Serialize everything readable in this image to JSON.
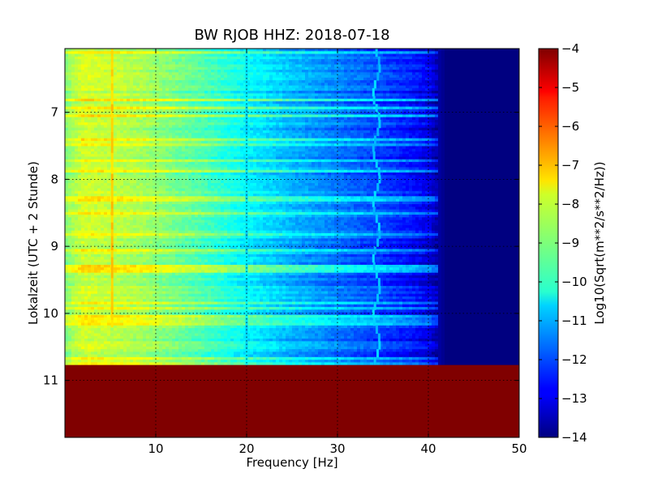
{
  "chart_data": {
    "type": "heatmap",
    "title": "BW RJOB HHZ: 2018-07-18",
    "xlabel": "Frequency [Hz]",
    "ylabel": "Lokalzeit (UTC + 2 Stunde)",
    "colorbar_label": "Log10(Sqrt(m**2/s**2/Hz))",
    "xlim": [
      0,
      50
    ],
    "ylim": [
      11.85,
      6.05
    ],
    "y_inverted": true,
    "x_ticks": [
      10,
      20,
      30,
      40,
      50
    ],
    "y_ticks": [
      7,
      8,
      9,
      10,
      11
    ],
    "colorbar_range": [
      -14,
      -4
    ],
    "colorbar_ticks": [
      -4,
      -5,
      -6,
      -7,
      -8,
      -9,
      -10,
      -11,
      -12,
      -13,
      -14
    ],
    "colormap": "jet",
    "grid": true,
    "data_end_time": 10.77,
    "fill_value_after_data_end": -4,
    "spectrum_profile": [
      {
        "freq": 0,
        "value": -9.0
      },
      {
        "freq": 2,
        "value": -8.2
      },
      {
        "freq": 8,
        "value": -8.6
      },
      {
        "freq": 15,
        "value": -9.5
      },
      {
        "freq": 20,
        "value": -10.3
      },
      {
        "freq": 25,
        "value": -11.0
      },
      {
        "freq": 30,
        "value": -11.6
      },
      {
        "freq": 35,
        "value": -12.2
      },
      {
        "freq": 38,
        "value": -12.6
      },
      {
        "freq": 40,
        "value": -13.0
      },
      {
        "freq": 41,
        "value": -13.6
      },
      {
        "freq": 42,
        "value": -14.0
      },
      {
        "freq": 50,
        "value": -14.0
      }
    ],
    "features": [
      {
        "name": "narrowband line",
        "freq": 5.2,
        "time_start": 6.05,
        "time_end": 10.2,
        "value": -7.3
      },
      {
        "name": "narrowband line",
        "freq": 20.0,
        "time_start": 6.05,
        "time_end": 10.77,
        "value": -10.5
      },
      {
        "name": "drifting line",
        "freq": 34.3,
        "time_start": 6.05,
        "time_end": 10.77,
        "value": -10.8
      }
    ]
  }
}
